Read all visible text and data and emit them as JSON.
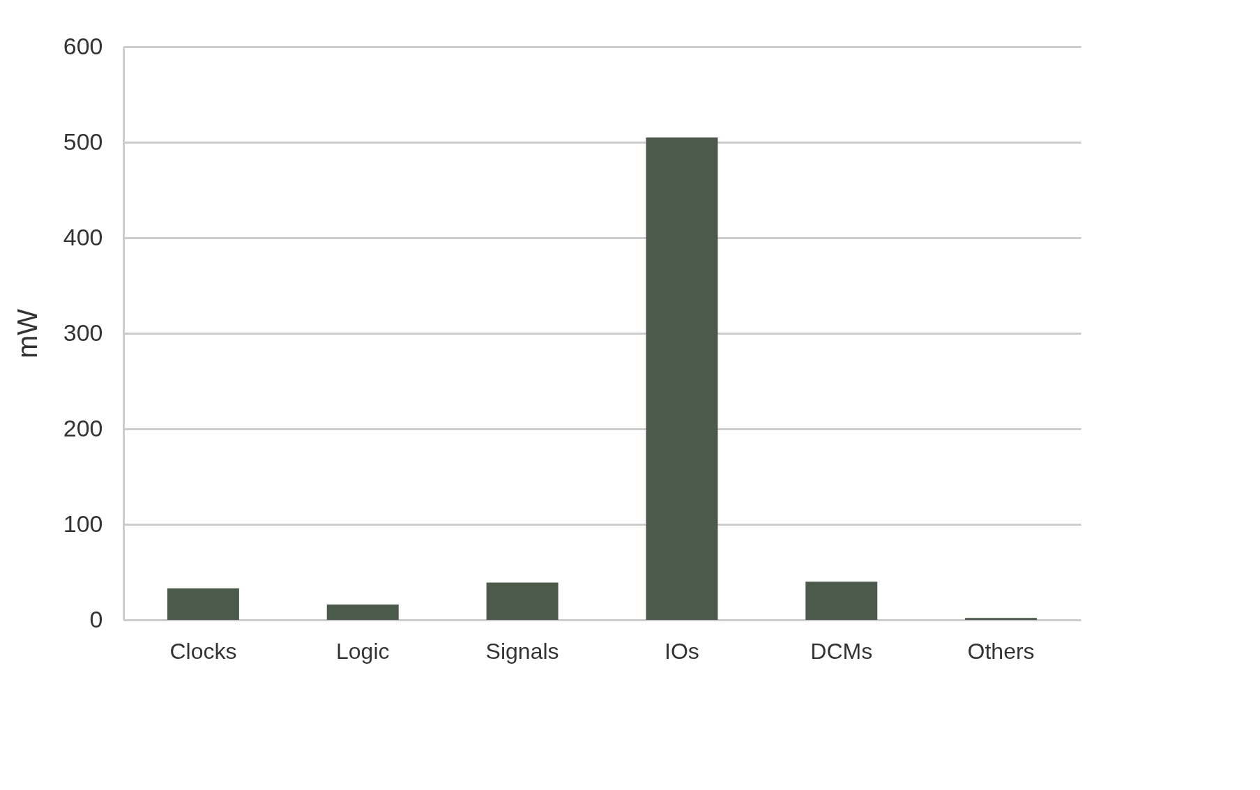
{
  "chart_data": {
    "type": "bar",
    "ylabel": "mW",
    "categories": [
      "Clocks",
      "Logic",
      "Signals",
      "IOs",
      "DCMs",
      "Others"
    ],
    "values": [
      33,
      16,
      39,
      505,
      40,
      2
    ],
    "color": "#4b5a4b",
    "ylim": [
      0,
      600
    ],
    "yticks": [
      0,
      100,
      200,
      300,
      400,
      500,
      600
    ],
    "grid": "y"
  }
}
